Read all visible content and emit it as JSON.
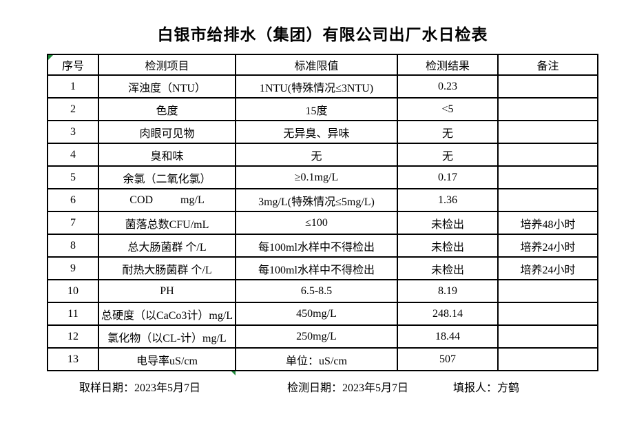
{
  "title": "白银市给排水（集团）有限公司出厂水日检表",
  "table": {
    "headers": [
      "序号",
      "检测项目",
      "标准限值",
      "检测结果",
      "备注"
    ],
    "rows": [
      {
        "no": "1",
        "item": "浑浊度（NTU）",
        "limit": "1NTU(特殊情况≤3NTU)",
        "result": "0.23",
        "note": ""
      },
      {
        "no": "2",
        "item": "色度",
        "limit": "15度",
        "result": "<5",
        "note": ""
      },
      {
        "no": "3",
        "item": "肉眼可见物",
        "limit": "无异臭、异味",
        "result": "无",
        "note": ""
      },
      {
        "no": "4",
        "item": "臭和味",
        "limit": "无",
        "result": "无",
        "note": ""
      },
      {
        "no": "5",
        "item": "余氯（二氧化氯）",
        "limit": "≥0.1mg/L",
        "result": "0.17",
        "note": ""
      },
      {
        "no": "6",
        "item": "COD          mg/L",
        "limit": "3mg/L(特殊情况≤5mg/L)",
        "result": "1.36",
        "note": ""
      },
      {
        "no": "7",
        "item": "菌落总数CFU/mL",
        "limit": "≤100",
        "result": "未检出",
        "note": "培养48小时"
      },
      {
        "no": "8",
        "item": "总大肠菌群 个/L",
        "limit": "每100ml水样中不得检出",
        "result": "未检出",
        "note": "培养24小时"
      },
      {
        "no": "9",
        "item": "耐热大肠菌群 个/L",
        "limit": "每100ml水样中不得检出",
        "result": "未检出",
        "note": "培养24小时"
      },
      {
        "no": "10",
        "item": "PH",
        "limit": "6.5-8.5",
        "result": "8.19",
        "note": ""
      },
      {
        "no": "11",
        "item": "总硬度（以CaCo3计）mg/L",
        "limit": "450mg/L",
        "result": "248.14",
        "note": ""
      },
      {
        "no": "12",
        "item": "氯化物（以CL-计）mg/L",
        "limit": "250mg/L",
        "result": "18.44",
        "note": ""
      },
      {
        "no": "13",
        "item": "电导率uS/cm",
        "limit": "单位：uS/cm",
        "result": "507",
        "note": ""
      }
    ]
  },
  "footer": {
    "sampling_date": "取样日期：2023年5月7日",
    "test_date": "检测日期：2023年5月7日",
    "reporter": "填报人：方鹤"
  },
  "colors": {
    "marker_green": "#1f8a3b",
    "border": "#000000",
    "text": "#000000",
    "background": "#ffffff"
  }
}
